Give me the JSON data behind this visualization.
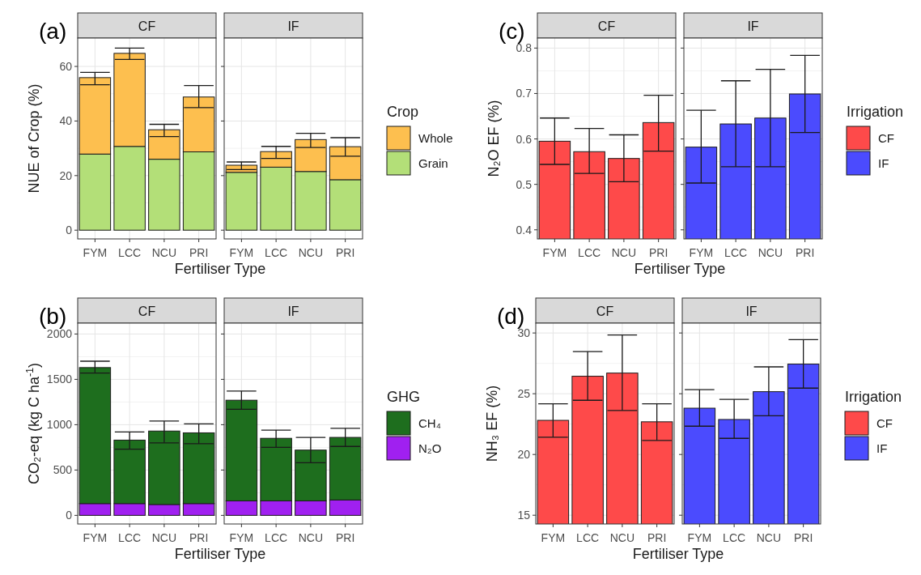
{
  "chart_data": [
    {
      "type": "bar",
      "title": "CF",
      "xlabel": "Fertiliser Type",
      "ylabel": "NUE of Crop (%)",
      "annotations": [
        "(a)"
      ],
      "categories": [
        "FYM",
        "LCC",
        "NCU",
        "PRI"
      ],
      "stacked": true,
      "ylim": [
        -3.2,
        70.4
      ],
      "yticks": [
        0,
        20,
        40,
        60
      ],
      "grid": true,
      "series": [
        {
          "color": "#b3df78",
          "values": [
            27.9,
            30.7,
            26.0,
            28.7
          ]
        },
        {
          "color": "#fdbf4f",
          "values": [
            28.0,
            34.1,
            10.8,
            20.1
          ],
          "errors": [
            [
              53.3,
              57.8
            ],
            [
              62.6,
              66.7
            ],
            [
              34.3,
              38.8
            ],
            [
              44.9,
              53.0
            ]
          ]
        }
      ]
    },
    {
      "type": "bar",
      "title": "IF",
      "categories": [
        "FYM",
        "LCC",
        "NCU",
        "PRI"
      ],
      "stacked": true,
      "ylim": [
        -3.2,
        70.4
      ],
      "yticks": [
        0,
        20,
        40,
        60
      ],
      "grid": true,
      "tick_labels": "x",
      "legend": "right",
      "legend_title": "Crop",
      "series": [
        {
          "name": "Grain",
          "color": "#b3df78",
          "values": [
            21.2,
            23.1,
            21.5,
            18.5
          ]
        },
        {
          "name": "Whole",
          "color": "#fdbf4f",
          "values": [
            2.6,
            5.7,
            11.7,
            12.1
          ],
          "errors": [
            [
              22.2,
              25.0
            ],
            [
              26.3,
              30.7
            ],
            [
              30.3,
              35.5
            ],
            [
              27.1,
              33.9
            ]
          ]
        }
      ]
    },
    {
      "type": "bar",
      "title": "CF",
      "xlabel": "Fertiliser Type",
      "ylabel": "N₂O EF (%)",
      "annotations": [
        "(c)"
      ],
      "categories": [
        "FYM",
        "LCC",
        "NCU",
        "PRI"
      ],
      "ylim": [
        0.38,
        0.822
      ],
      "yticks": [
        0.4,
        0.5,
        0.6,
        0.7,
        0.8
      ],
      "grid": true,
      "series": [
        {
          "name": "CF",
          "color": "#fe4a4a",
          "values": [
            0.595,
            0.572,
            0.557,
            0.636
          ],
          "errors": [
            [
              0.544,
              0.646
            ],
            [
              0.524,
              0.623
            ],
            [
              0.506,
              0.609
            ],
            [
              0.573,
              0.696
            ]
          ]
        }
      ]
    },
    {
      "type": "bar",
      "title": "IF",
      "categories": [
        "FYM",
        "LCC",
        "NCU",
        "PRI"
      ],
      "ylim": [
        0.38,
        0.822
      ],
      "yticks": [
        0.4,
        0.5,
        0.6,
        0.7,
        0.8
      ],
      "grid": true,
      "tick_labels": "x",
      "legend": "right",
      "legend_title": "Irrigation",
      "series": [
        {
          "name": "IF",
          "color": "#4b4bfe",
          "values": [
            0.582,
            0.633,
            0.646,
            0.699
          ],
          "errors": [
            [
              0.503,
              0.663
            ],
            [
              0.539,
              0.728
            ],
            [
              0.539,
              0.753
            ],
            [
              0.614,
              0.784
            ]
          ]
        }
      ]
    },
    {
      "type": "bar",
      "title": "CF",
      "xlabel": "Fertiliser Type",
      "ylabel": "CO₂-eq  (kg C ha$^{-1}$)",
      "annotations": [
        "(b)"
      ],
      "categories": [
        "FYM",
        "LCC",
        "NCU",
        "PRI"
      ],
      "stacked": true,
      "ylim": [
        -95,
        2120
      ],
      "yticks": [
        0,
        500,
        1000,
        1500,
        2000
      ],
      "grid": true,
      "series": [
        {
          "color": "#a020f0",
          "values": [
            130,
            130,
            120,
            130
          ]
        },
        {
          "color": "#1e6e1e",
          "values": [
            1500,
            700,
            810,
            780
          ],
          "errors": [
            [
              1570,
              1700
            ],
            [
              730,
              920
            ],
            [
              800,
              1040
            ],
            [
              790,
              1010
            ]
          ]
        }
      ]
    },
    {
      "type": "bar",
      "title": "IF",
      "categories": [
        "FYM",
        "LCC",
        "NCU",
        "PRI"
      ],
      "stacked": true,
      "ylim": [
        -95,
        2120
      ],
      "yticks": [
        0,
        500,
        1000,
        1500,
        2000
      ],
      "grid": true,
      "tick_labels": "x",
      "legend": "right",
      "legend_title": "GHG",
      "series": [
        {
          "name": "N₂O",
          "color": "#a020f0",
          "values": [
            160,
            160,
            160,
            170
          ]
        },
        {
          "name": "CH₄",
          "color": "#1e6e1e",
          "values": [
            1110,
            690,
            560,
            690
          ],
          "errors": [
            [
              1170,
              1370
            ],
            [
              750,
              940
            ],
            [
              580,
              860
            ],
            [
              760,
              960
            ]
          ]
        }
      ]
    },
    {
      "type": "bar",
      "title": "CF",
      "xlabel": "Fertiliser Type",
      "ylabel": "NH₃  EF (%)",
      "annotations": [
        "(d)"
      ],
      "categories": [
        "FYM",
        "LCC",
        "NCU",
        "PRI"
      ],
      "ylim": [
        14.28,
        30.81
      ],
      "yticks": [
        15,
        20,
        25,
        30
      ],
      "grid": true,
      "series": [
        {
          "name": "CF",
          "color": "#fe4a4a",
          "values": [
            22.81,
            26.44,
            26.7,
            22.69
          ],
          "errors": [
            [
              21.42,
              24.17
            ],
            [
              24.46,
              28.47
            ],
            [
              23.62,
              29.83
            ],
            [
              21.16,
              24.17
            ]
          ]
        }
      ]
    },
    {
      "type": "bar",
      "title": "IF",
      "categories": [
        "FYM",
        "LCC",
        "NCU",
        "PRI"
      ],
      "ylim": [
        14.28,
        30.81
      ],
      "yticks": [
        15,
        20,
        25,
        30
      ],
      "grid": true,
      "tick_labels": "x",
      "legend": "right",
      "legend_title": "Irrigation",
      "series": [
        {
          "name": "IF",
          "color": "#4b4bfe",
          "values": [
            23.81,
            22.88,
            25.17,
            27.44
          ],
          "errors": [
            [
              22.33,
              25.34
            ],
            [
              21.33,
              24.53
            ],
            [
              23.19,
              27.21
            ],
            [
              25.46,
              29.45
            ]
          ]
        }
      ]
    }
  ]
}
